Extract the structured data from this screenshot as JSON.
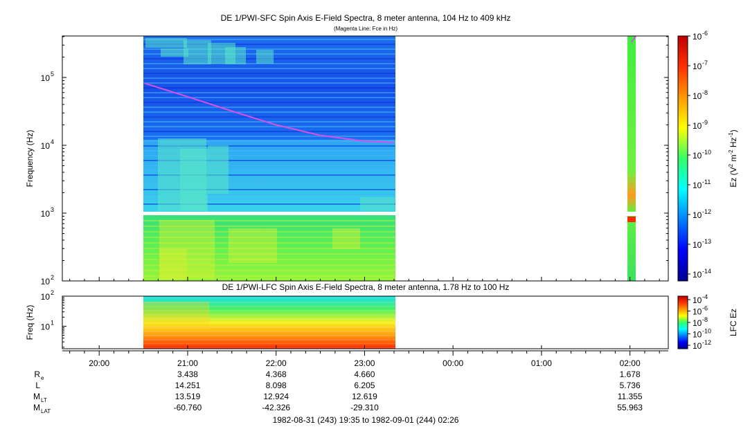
{
  "chart_data": [
    {
      "type": "heatmap",
      "title": "DE 1/PWI-SFC  Spin Axis E-Field Spectra, 8 meter antenna, 104 Hz to 409 kHz",
      "subtitle": "(Magenta Line: Fce in Hz)",
      "ylabel": "Frequency (Hz)",
      "yscale": "log",
      "ylim": [
        100,
        409000
      ],
      "y_ticks": [
        {
          "value": 100,
          "label": "10",
          "exp": "2"
        },
        {
          "value": 1000,
          "label": "10",
          "exp": "3"
        },
        {
          "value": 10000,
          "label": "10",
          "exp": "4"
        },
        {
          "value": 100000,
          "label": "10",
          "exp": "5"
        }
      ],
      "data_intervals": [
        {
          "start": "20:31",
          "end": "23:20",
          "band": "full"
        },
        {
          "start": "02:00",
          "end": "02:05",
          "band": "full"
        }
      ],
      "fce_line": {
        "color": "#d94fe6",
        "points": [
          [
            "20:31",
            82000
          ],
          [
            "21:00",
            52000
          ],
          [
            "21:30",
            32000
          ],
          [
            "22:00",
            20000
          ],
          [
            "22:30",
            14000
          ],
          [
            "23:00",
            11500
          ],
          [
            "23:20",
            11000
          ],
          [
            "02:01",
            330000
          ],
          [
            "02:04",
            409000
          ]
        ]
      },
      "colorbar": {
        "label": "Ez (V2 m-2 Hz-1)",
        "label_parts": [
          "Ez (V",
          "2",
          " m",
          "-2",
          " Hz",
          "-1",
          ")"
        ],
        "scale": "log",
        "range": [
          1e-14,
          1e-06
        ],
        "ticks": [
          {
            "label": "10",
            "exp": "-6"
          },
          {
            "label": "10",
            "exp": "-7"
          },
          {
            "label": "10",
            "exp": "-8"
          },
          {
            "label": "10",
            "exp": "-9"
          },
          {
            "label": "10",
            "exp": "-10"
          },
          {
            "label": "10",
            "exp": "-11"
          },
          {
            "label": "10",
            "exp": "-12"
          },
          {
            "label": "10",
            "exp": "-13"
          },
          {
            "label": "10",
            "exp": "-14"
          }
        ]
      }
    },
    {
      "type": "heatmap",
      "title": "DE 1/PWI-LFC  Spin Axis E-Field Spectra, 8 meter antenna, 1.78 Hz to 100 Hz",
      "ylabel": "Freq (Hz)",
      "yscale": "log",
      "ylim": [
        1.78,
        100
      ],
      "y_ticks": [
        {
          "value": 10,
          "label": "10",
          "exp": "1"
        },
        {
          "value": 100,
          "label": "10",
          "exp": "2"
        }
      ],
      "data_intervals": [
        {
          "start": "20:31",
          "end": "23:20"
        }
      ],
      "colorbar": {
        "label": "LFC Ez",
        "scale": "log",
        "range": [
          1e-12,
          0.0001
        ],
        "ticks": [
          {
            "label": "10",
            "exp": "-4"
          },
          {
            "label": "10",
            "exp": "-6"
          },
          {
            "label": "10",
            "exp": "-8"
          },
          {
            "label": "10",
            "exp": "-10"
          },
          {
            "label": "10",
            "exp": "-12"
          }
        ]
      }
    }
  ],
  "time_axis": {
    "ticks": [
      {
        "time": "20:00",
        "label": "20:00"
      },
      {
        "time": "21:00",
        "label": "21:00"
      },
      {
        "time": "22:00",
        "label": "22:00"
      },
      {
        "time": "23:00",
        "label": "23:00"
      },
      {
        "time": "00:00",
        "label": "00:00"
      },
      {
        "time": "01:00",
        "label": "01:00"
      },
      {
        "time": "02:00",
        "label": "02:00"
      }
    ],
    "range_label": "1982-08-31 (243) 19:35 to 1982-09-01 (244) 02:26"
  },
  "ephemeris": {
    "rows": [
      {
        "name": "R",
        "sub": "e",
        "values": [
          "3.438",
          "4.368",
          "4.660",
          "",
          "",
          "1.678"
        ]
      },
      {
        "name": "L",
        "sub": "",
        "values": [
          "14.251",
          "8.098",
          "6.205",
          "",
          "",
          "5.736"
        ]
      },
      {
        "name": "M",
        "sub": "LT",
        "values": [
          "13.519",
          "12.924",
          "12.619",
          "",
          "",
          "11.355"
        ]
      },
      {
        "name": "M",
        "sub": "LAT",
        "values": [
          "-60.760",
          "-42.326",
          "-29.310",
          "",
          "",
          "55.963"
        ]
      }
    ],
    "columns": [
      "21:00",
      "22:00",
      "23:00",
      "00:00",
      "01:00",
      "02:00"
    ]
  }
}
